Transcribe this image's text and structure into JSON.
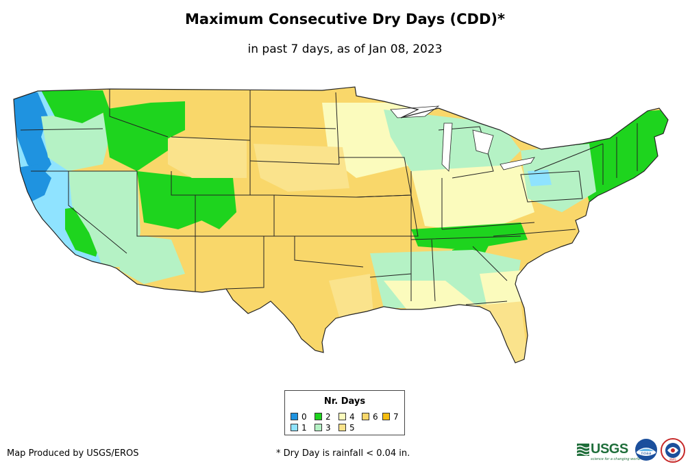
{
  "title": "Maximum Consecutive Dry Days (CDD)*",
  "subtitle": "in past 7 days, as of Jan 08, 2023",
  "map": {
    "subject": "Contiguous United States",
    "colors": {
      "land_default": "#f9d76a",
      "state_border": "#222222",
      "ocean": "#ffffff"
    }
  },
  "legend": {
    "title": "Nr. Days",
    "items": [
      {
        "label": "0",
        "color": "#1f93e0"
      },
      {
        "label": "1",
        "color": "#8fe3ff"
      },
      {
        "label": "2",
        "color": "#1ed41e"
      },
      {
        "label": "3",
        "color": "#b5f2c5"
      },
      {
        "label": "4",
        "color": "#fbfbbd"
      },
      {
        "label": "5",
        "color": "#fae38c"
      },
      {
        "label": "6",
        "color": "#f9d76a"
      },
      {
        "label": "7",
        "color": "#f5bd0f"
      }
    ]
  },
  "footer": {
    "producer": "Map Produced by USGS/EROS",
    "note": "* Dry Day is rainfall < 0.04 in."
  },
  "logos": {
    "usgs": "USGS",
    "usgs_tagline": "science for a changing world",
    "noaa": "noaa",
    "nws": "NWS"
  }
}
